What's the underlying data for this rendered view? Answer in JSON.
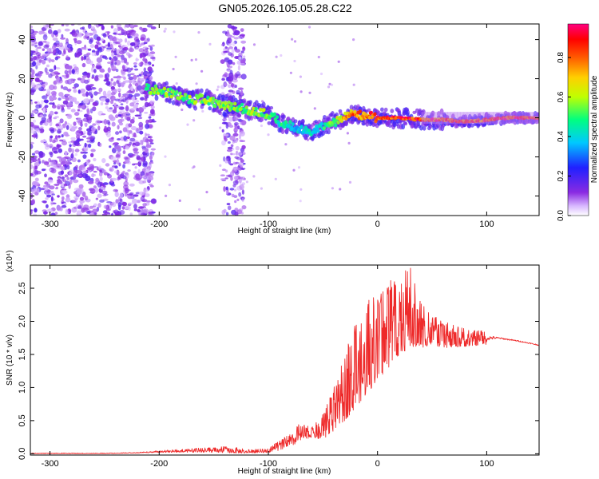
{
  "title": "GN05.2026.105.05.28.C22",
  "chart_data": [
    {
      "type": "heatmap",
      "xlabel": "Height of straight line (km)",
      "ylabel": "Frequency (Hz)",
      "xlim": [
        -318,
        148
      ],
      "ylim": [
        -50,
        48
      ],
      "xticks": [
        -300,
        -200,
        -100,
        0,
        100
      ],
      "yticks": [
        -40,
        -20,
        0,
        20,
        40
      ],
      "colorbar": {
        "label": "Normalized spectral amplitude",
        "range": [
          0,
          0.97
        ],
        "ticks": [
          0.0,
          0.2,
          0.4,
          0.6,
          0.8
        ],
        "colormap": [
          "#ffffff",
          "#d8b8ff",
          "#8a2be2",
          "#2020ff",
          "#00c8ff",
          "#00ff80",
          "#c0ff00",
          "#ffd000",
          "#ff6000",
          "#ff0000",
          "#ff0080"
        ]
      },
      "ridge": {
        "x": [
          -212,
          -200,
          -185,
          -170,
          -160,
          -150,
          -140,
          -130,
          -120,
          -110,
          -100,
          -90,
          -80,
          -70,
          -60,
          -52,
          -45,
          -38,
          -30,
          -20,
          -10,
          0,
          20,
          40,
          60,
          80,
          100,
          120,
          148
        ],
        "frequency": [
          15,
          14,
          12,
          9,
          10,
          8,
          6,
          6,
          4,
          3,
          2,
          -2,
          -4,
          -6,
          -7,
          -5,
          -3,
          -2,
          1,
          2,
          1,
          0,
          0,
          -1,
          -1,
          -2,
          -1,
          0,
          0
        ],
        "amplitude": [
          0.55,
          0.6,
          0.58,
          0.6,
          0.62,
          0.58,
          0.6,
          0.58,
          0.6,
          0.62,
          0.55,
          0.5,
          0.45,
          0.4,
          0.45,
          0.45,
          0.55,
          0.6,
          0.75,
          0.85,
          0.85,
          0.9,
          0.95,
          0.95,
          0.9,
          0.9,
          0.9,
          0.95,
          0.95
        ]
      },
      "noise_regions": [
        {
          "x_range": [
            -318,
            -205
          ],
          "freq_range": [
            -50,
            48
          ]
        },
        {
          "x_range": [
            -142,
            -122
          ],
          "freq_range": [
            -50,
            48
          ]
        }
      ]
    },
    {
      "type": "line",
      "xlabel": "Height of straight line (km)",
      "ylabel": "SNR (10 * v/v)",
      "y_multiplier": "(x10⁴)",
      "xlim": [
        -318,
        148
      ],
      "ylim": [
        -0.02,
        2.85
      ],
      "xticks": [
        -300,
        -200,
        -100,
        0,
        100
      ],
      "yticks": [
        0.0,
        0.5,
        1.0,
        1.5,
        2.0,
        2.5
      ],
      "ytick_labels": [
        "0.0",
        "0.5",
        "1.0",
        "1.5",
        "2.0",
        "2.5"
      ],
      "series": [
        {
          "color": "#ee2a2a",
          "envelope_x": [
            -318,
            -250,
            -220,
            -200,
            -170,
            -150,
            -130,
            -120,
            -100,
            -90,
            -80,
            -70,
            -60,
            -50,
            -40,
            -30,
            -20,
            -10,
            0,
            10,
            20,
            30,
            40,
            50,
            60,
            80,
            100,
            110,
            130,
            148
          ],
          "envelope_min": [
            0.0,
            0.0,
            0.01,
            0.02,
            0.02,
            0.02,
            0.01,
            0.01,
            0.02,
            0.05,
            0.1,
            0.2,
            0.25,
            0.2,
            0.35,
            0.5,
            0.7,
            0.9,
            1.1,
            1.3,
            1.5,
            1.6,
            1.6,
            1.65,
            1.6,
            1.62,
            1.65,
            1.72,
            1.68,
            1.62
          ],
          "envelope_max": [
            0.01,
            0.01,
            0.02,
            0.05,
            0.08,
            0.1,
            0.12,
            0.06,
            0.08,
            0.2,
            0.3,
            0.5,
            0.4,
            0.6,
            1.0,
            1.5,
            2.0,
            2.3,
            2.4,
            2.6,
            2.7,
            2.85,
            2.3,
            2.1,
            2.0,
            1.9,
            1.85,
            1.78,
            1.72,
            1.66
          ]
        }
      ]
    }
  ]
}
